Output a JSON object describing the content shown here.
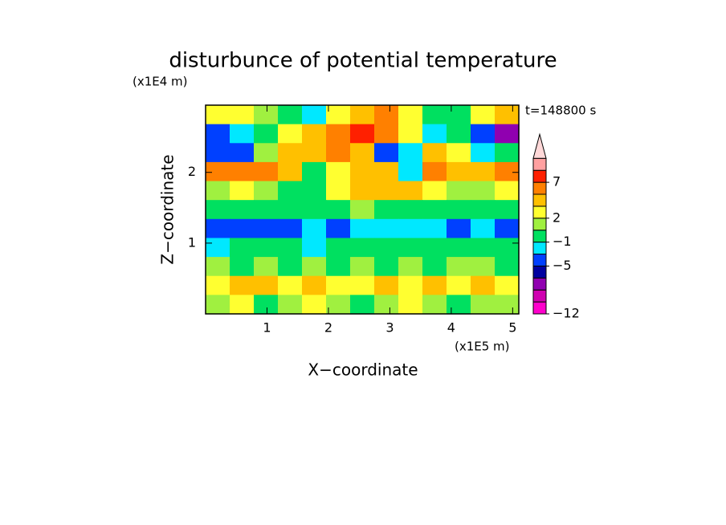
{
  "chart_data": {
    "type": "contour",
    "title": "disturbunce of potential temperature",
    "y_unit": "(x1E4 m)",
    "x_unit": "(x1E5 m)",
    "annotation": "t=148800 s",
    "xlabel": "X−coordinate",
    "ylabel": "Z−coordinate",
    "xlim": [
      0,
      5.1
    ],
    "ylim": [
      0,
      2.95
    ],
    "xticks": [
      1,
      2,
      3,
      4,
      5
    ],
    "yticks": [
      1,
      2
    ],
    "z": [
      [
        2,
        2,
        1,
        0,
        -3,
        2,
        3,
        5,
        2,
        0,
        -1,
        2,
        3
      ],
      [
        -5,
        -3,
        0,
        2,
        3,
        5,
        7,
        5,
        2,
        -3,
        0,
        -5,
        -8
      ],
      [
        -5,
        -5,
        1,
        3,
        4,
        6,
        4,
        -5,
        -3,
        4,
        2,
        -3,
        -1
      ],
      [
        5,
        6,
        5,
        3,
        -1,
        2,
        3,
        3,
        -3,
        5,
        3,
        4,
        6
      ],
      [
        1,
        2,
        1,
        -1,
        0,
        2,
        3,
        4,
        3,
        2,
        1,
        1,
        2
      ],
      [
        -1,
        -1,
        0,
        -1,
        -1,
        0,
        1,
        0,
        -1,
        -1,
        -1,
        0,
        -1
      ],
      [
        -4,
        -5,
        -4,
        -5,
        -3,
        -4,
        -3,
        -2,
        -3,
        -2,
        -5,
        -3,
        -4
      ],
      [
        -2,
        -1,
        -1,
        -1,
        -2,
        -1,
        -1,
        -1,
        -1,
        -1,
        0,
        -1,
        -1
      ],
      [
        1,
        0,
        1,
        0,
        1,
        0,
        1,
        0,
        1,
        0,
        1,
        1,
        0
      ],
      [
        2,
        3,
        3,
        2,
        3,
        2,
        2,
        3,
        2,
        3,
        2,
        3,
        2
      ],
      [
        1,
        2,
        0,
        1,
        2,
        1,
        0,
        1,
        2,
        1,
        0,
        1,
        1
      ]
    ],
    "levels": [
      -12,
      -10,
      -8,
      -6,
      -5,
      -3,
      -1,
      1,
      2,
      3,
      5,
      7,
      9,
      11
    ],
    "level_colors": [
      "#ff00cc",
      "#d000b0",
      "#9000b0",
      "#0000a0",
      "#0040ff",
      "#00e8ff",
      "#00e060",
      "#a0f040",
      "#ffff30",
      "#ffc000",
      "#ff8000",
      "#ff2000",
      "#ffa0a0"
    ],
    "extend_color": "#ffd8d8",
    "colorbar_ticks": [
      {
        "value": -12,
        "label": "−12"
      },
      {
        "value": -5,
        "label": "−5"
      },
      {
        "value": -1,
        "label": "−1"
      },
      2,
      7
    ]
  }
}
